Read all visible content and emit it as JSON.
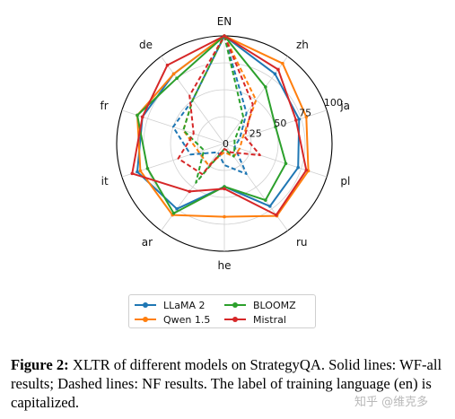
{
  "chart_data": {
    "type": "radar",
    "title": "",
    "axes": [
      "EN",
      "zh",
      "ja",
      "pl",
      "ru",
      "he",
      "ar",
      "it",
      "fr",
      "de"
    ],
    "r_ticks": [
      0,
      25,
      50,
      75,
      100
    ],
    "r_tick_labels": [
      "0",
      "25",
      "50",
      "75",
      "100"
    ],
    "rlim": [
      0,
      100
    ],
    "grid": true,
    "series": [
      {
        "name": "LLaMA 2",
        "color": "#1f77b4",
        "wf_all": [
          100,
          80,
          73,
          72,
          72,
          40,
          75,
          85,
          80,
          80
        ],
        "nf": [
          100,
          35,
          15,
          10,
          35,
          20,
          10,
          33,
          50,
          50
        ]
      },
      {
        "name": "Qwen 1.5",
        "color": "#ff7f0e",
        "wf_all": [
          100,
          92,
          80,
          82,
          83,
          68,
          82,
          82,
          85,
          80
        ],
        "nf": [
          100,
          50,
          18,
          15,
          15,
          8,
          25,
          25,
          40,
          50
        ]
      },
      {
        "name": "BLOOMZ",
        "color": "#2ca02c",
        "wf_all": [
          100,
          65,
          50,
          60,
          65,
          40,
          80,
          75,
          85,
          75
        ],
        "nf": [
          100,
          30,
          10,
          10,
          15,
          5,
          45,
          20,
          40,
          50
        ]
      },
      {
        "name": "Mistral",
        "color": "#d62728",
        "wf_all": [
          100,
          85,
          70,
          80,
          82,
          42,
          55,
          90,
          80,
          90
        ],
        "nf": [
          100,
          45,
          20,
          35,
          10,
          5,
          35,
          45,
          30,
          55
        ]
      }
    ],
    "legend_position": "below",
    "legend_columns": 2,
    "line_styles": {
      "solid": "WF-all results",
      "dashed": "NF results"
    }
  },
  "caption": {
    "label": "Figure 2:",
    "text": "XLTR of different models on StrategyQA. Solid lines: WF-all results; Dashed lines: NF results. The label of training language (en) is capitalized."
  },
  "watermark": "知乎 @维克多"
}
